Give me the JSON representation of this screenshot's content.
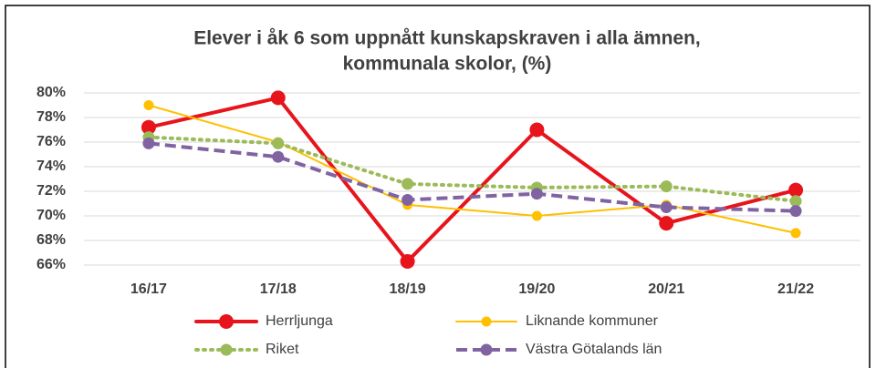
{
  "chart_data": {
    "type": "line",
    "title": [
      "Elever i åk 6 som uppnått kunskapskraven i alla ämnen,",
      "kommunala skolor, (%)"
    ],
    "categories": [
      "16/17",
      "17/18",
      "18/19",
      "19/20",
      "20/21",
      "21/22"
    ],
    "series": [
      {
        "name": "Herrljunga",
        "color": "#e8141c",
        "line_style": "solid",
        "values": [
          77.2,
          79.6,
          66.3,
          77.0,
          69.4,
          72.1
        ]
      },
      {
        "name": "Liknande kommuner",
        "color": "#ffc000",
        "line_style": "solid",
        "values": [
          79.0,
          76.0,
          70.9,
          70.0,
          70.9,
          68.6
        ]
      },
      {
        "name": "Riket",
        "color": "#9bbb59",
        "line_style": "dotted",
        "values": [
          76.4,
          75.9,
          72.6,
          72.3,
          72.4,
          71.2
        ]
      },
      {
        "name": "Västra Götalands län",
        "color": "#8064a2",
        "line_style": "dashed",
        "values": [
          75.9,
          74.8,
          71.3,
          71.8,
          70.7,
          70.4
        ]
      }
    ],
    "ylim": [
      66,
      80
    ],
    "yticks": [
      {
        "value": 66,
        "label": "66%"
      },
      {
        "value": 68,
        "label": "68%"
      },
      {
        "value": 70,
        "label": "70%"
      },
      {
        "value": 72,
        "label": "72%"
      },
      {
        "value": 74,
        "label": "74%"
      },
      {
        "value": 76,
        "label": "76%"
      },
      {
        "value": 78,
        "label": "78%"
      },
      {
        "value": 80,
        "label": "80%"
      }
    ],
    "grid": true,
    "legend": "bottom"
  }
}
